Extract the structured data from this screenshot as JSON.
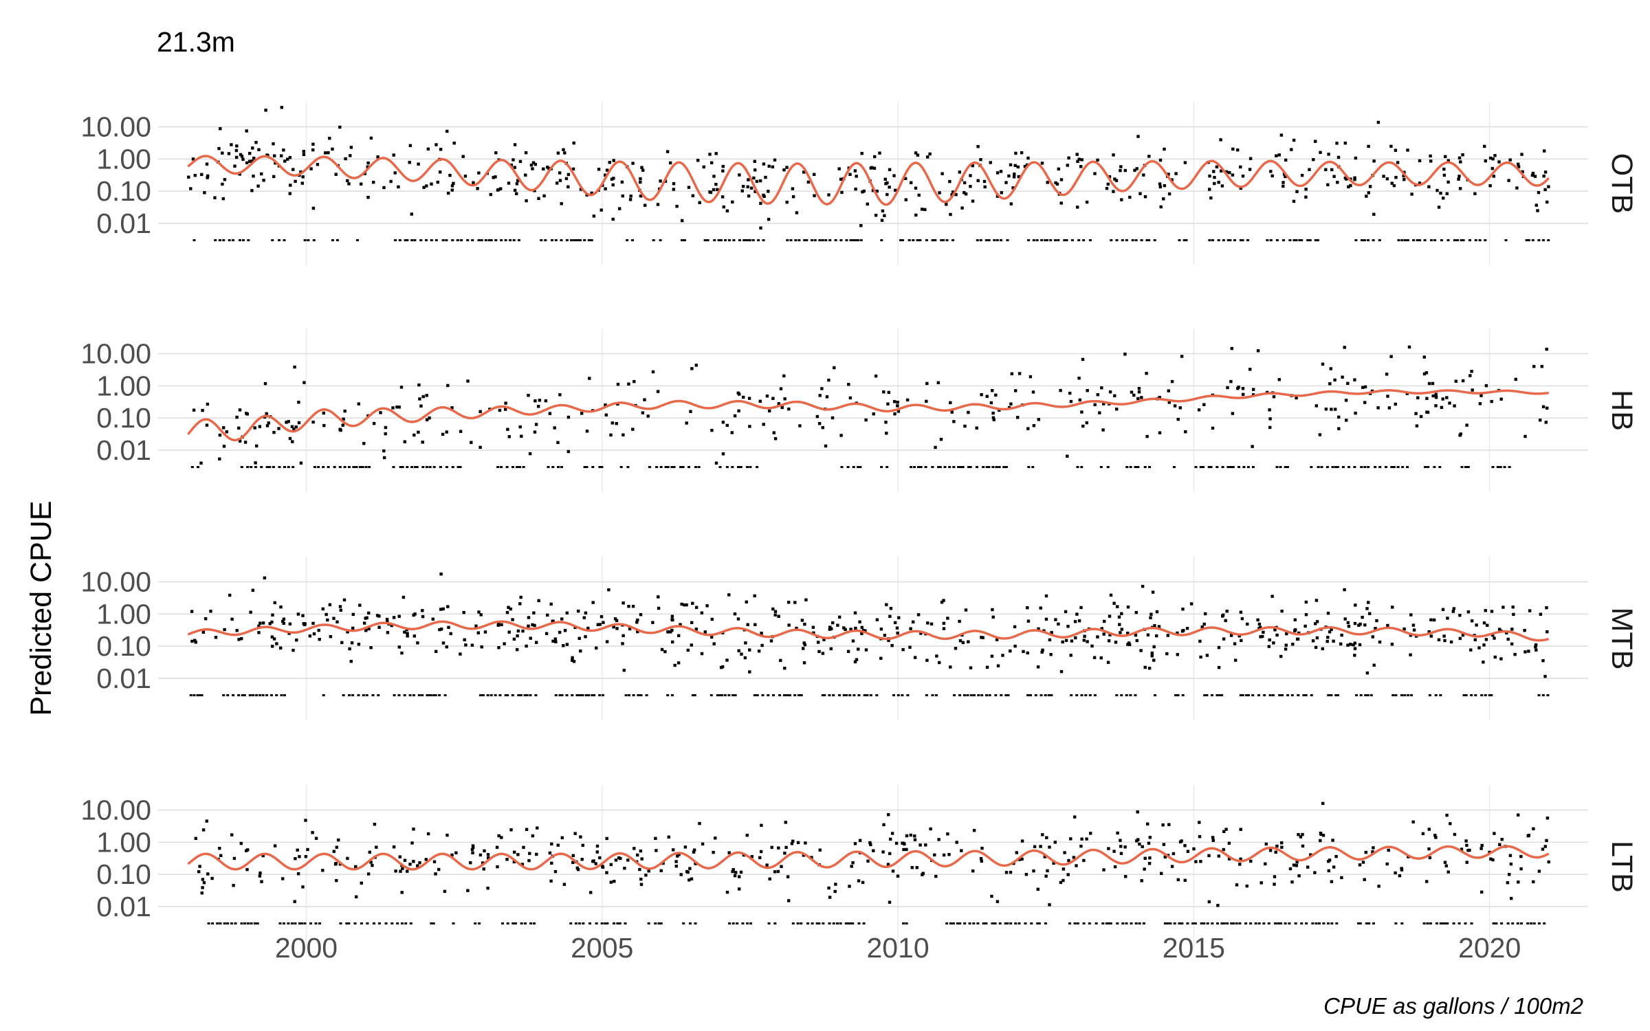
{
  "chart_data": {
    "type": "scatter",
    "title": "21.3m",
    "ylabel": "Predicted CPUE",
    "caption": "CPUE as gallons / 100m2",
    "x_scale": "date",
    "y_scale": "log10",
    "xlim": [
      "1997-07-01",
      "2021-09-01"
    ],
    "ylim": [
      0.0005,
      60
    ],
    "x_ticks": [
      {
        "value": "2000-01-01",
        "label": "2000"
      },
      {
        "value": "2005-01-01",
        "label": "2005"
      },
      {
        "value": "2010-01-01",
        "label": "2010"
      },
      {
        "value": "2015-01-01",
        "label": "2015"
      },
      {
        "value": "2020-01-01",
        "label": "2020"
      }
    ],
    "y_ticks": [
      {
        "value": 10,
        "label": "10.00"
      },
      {
        "value": 1,
        "label": "1.00"
      },
      {
        "value": 0.1,
        "label": "0.10"
      },
      {
        "value": 0.01,
        "label": "0.01"
      }
    ],
    "grid": true,
    "legend": "none",
    "observed_point_color": "#000000",
    "smooth_line_color": "#e8684a",
    "zero_catch_row_value": 0.003,
    "panels": [
      {
        "strip_label": "OTB",
        "smooth": {
          "start": "1998-01-01",
          "end": "2021-01-01",
          "trend": [
            [
              1998.0,
              0.7
            ],
            [
              2000.0,
              0.6
            ],
            [
              2002.0,
              0.45
            ],
            [
              2004.0,
              0.3
            ],
            [
              2006.0,
              0.2
            ],
            [
              2008.0,
              0.17
            ],
            [
              2010.0,
              0.17
            ],
            [
              2012.0,
              0.22
            ],
            [
              2014.0,
              0.3
            ],
            [
              2016.0,
              0.35
            ],
            [
              2018.0,
              0.35
            ],
            [
              2020.0,
              0.35
            ],
            [
              2021.0,
              0.33
            ]
          ],
          "amplitude": [
            [
              1998.0,
              0.25
            ],
            [
              2002.0,
              0.35
            ],
            [
              2006.0,
              0.6
            ],
            [
              2010.0,
              0.65
            ],
            [
              2014.0,
              0.45
            ],
            [
              2018.0,
              0.35
            ],
            [
              2021.0,
              0.35
            ]
          ]
        },
        "points": {
          "positive_count": 540,
          "zero_count": 320,
          "seed": 11,
          "trend": [
            [
              1998.0,
              0.7
            ],
            [
              2002.0,
              0.5
            ],
            [
              2006.0,
              0.22
            ],
            [
              2010.0,
              0.16
            ],
            [
              2014.0,
              0.3
            ],
            [
              2018.0,
              0.36
            ],
            [
              2021.0,
              0.33
            ]
          ],
          "spread_log10": 0.75,
          "date_range": [
            "1998-01-01",
            "2021-01-01"
          ]
        }
      },
      {
        "strip_label": "HB",
        "smooth": {
          "start": "1998-01-01",
          "end": "2021-01-01",
          "trend": [
            [
              1998.0,
              0.04
            ],
            [
              1999.0,
              0.045
            ],
            [
              2000.0,
              0.09
            ],
            [
              2002.0,
              0.13
            ],
            [
              2004.0,
              0.18
            ],
            [
              2006.0,
              0.26
            ],
            [
              2008.0,
              0.26
            ],
            [
              2010.0,
              0.2
            ],
            [
              2012.0,
              0.23
            ],
            [
              2014.0,
              0.32
            ],
            [
              2016.0,
              0.5
            ],
            [
              2018.0,
              0.65
            ],
            [
              2020.0,
              0.65
            ],
            [
              2021.0,
              0.62
            ]
          ],
          "amplitude": [
            [
              1998.0,
              0.35
            ],
            [
              2000.0,
              0.3
            ],
            [
              2004.0,
              0.12
            ],
            [
              2010.0,
              0.1
            ],
            [
              2014.0,
              0.06
            ],
            [
              2021.0,
              0.04
            ]
          ]
        },
        "points": {
          "positive_count": 360,
          "zero_count": 300,
          "seed": 23,
          "trend": [
            [
              1998.0,
              0.05
            ],
            [
              2002.0,
              0.12
            ],
            [
              2006.0,
              0.25
            ],
            [
              2010.0,
              0.2
            ],
            [
              2014.0,
              0.3
            ],
            [
              2018.0,
              0.6
            ],
            [
              2021.0,
              0.6
            ]
          ],
          "spread_log10": 0.8,
          "date_range": [
            "1998-01-01",
            "2021-01-01"
          ]
        }
      },
      {
        "strip_label": "MTB",
        "smooth": {
          "start": "1998-01-01",
          "end": "2021-01-01",
          "trend": [
            [
              1998.0,
              0.25
            ],
            [
              2000.0,
              0.35
            ],
            [
              2002.0,
              0.45
            ],
            [
              2004.0,
              0.45
            ],
            [
              2006.0,
              0.33
            ],
            [
              2008.0,
              0.25
            ],
            [
              2010.0,
              0.22
            ],
            [
              2012.0,
              0.23
            ],
            [
              2014.0,
              0.28
            ],
            [
              2016.0,
              0.3
            ],
            [
              2018.0,
              0.3
            ],
            [
              2020.0,
              0.25
            ],
            [
              2021.0,
              0.18
            ]
          ],
          "amplitude": [
            [
              1998.0,
              0.1
            ],
            [
              2006.0,
              0.12
            ],
            [
              2012.0,
              0.12
            ],
            [
              2021.0,
              0.1
            ]
          ]
        },
        "points": {
          "positive_count": 600,
          "zero_count": 340,
          "seed": 37,
          "trend": [
            [
              1998.0,
              0.3
            ],
            [
              2002.0,
              0.45
            ],
            [
              2006.0,
              0.35
            ],
            [
              2010.0,
              0.2
            ],
            [
              2014.0,
              0.25
            ],
            [
              2018.0,
              0.28
            ],
            [
              2021.0,
              0.2
            ]
          ],
          "spread_log10": 0.7,
          "date_range": [
            "1998-01-01",
            "2021-01-01"
          ]
        }
      },
      {
        "strip_label": "LTB",
        "smooth": {
          "start": "1998-01-01",
          "end": "2021-01-01",
          "trend": [
            [
              1998.0,
              0.25
            ],
            [
              2004.0,
              0.25
            ],
            [
              2008.0,
              0.28
            ],
            [
              2012.0,
              0.32
            ],
            [
              2016.0,
              0.42
            ],
            [
              2020.0,
              0.5
            ],
            [
              2021.0,
              0.5
            ]
          ],
          "amplitude": [
            [
              1998.0,
              0.24
            ],
            [
              2010.0,
              0.24
            ],
            [
              2021.0,
              0.17
            ]
          ]
        },
        "points": {
          "positive_count": 470,
          "zero_count": 320,
          "seed": 53,
          "trend": [
            [
              1998.0,
              0.28
            ],
            [
              2004.0,
              0.3
            ],
            [
              2010.0,
              0.3
            ],
            [
              2016.0,
              0.45
            ],
            [
              2021.0,
              0.5
            ]
          ],
          "spread_log10": 0.75,
          "date_range": [
            "1998-01-01",
            "2021-01-01"
          ]
        }
      }
    ]
  }
}
